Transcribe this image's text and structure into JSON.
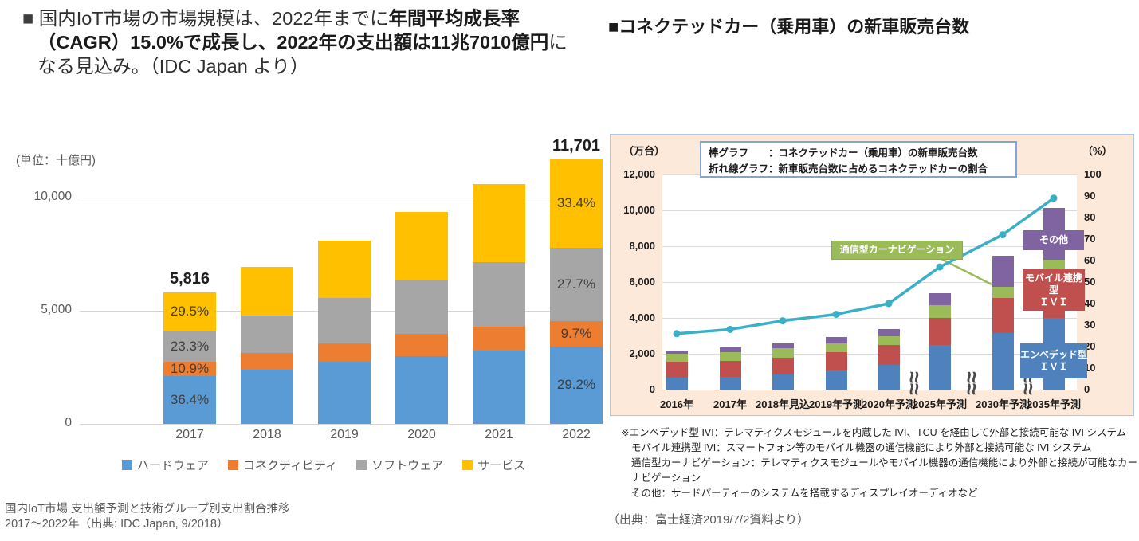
{
  "left": {
    "title": {
      "bullet": "■ ",
      "normal1": "国内IoT市場の市場規模は、2022年までに",
      "bold": "年間平均成長率（CAGR）15.0%で成長し、2022年の支出額は11兆7010億円",
      "normal2": "になる見込み。（IDC Japan より）"
    },
    "caption_line1": "国内IoT市場 支出額予測と技術グループ別支出割合推移",
    "caption_line2": "2017～2022年（出典: IDC Japan, 9/2018）"
  },
  "right": {
    "title": "■コネクテッドカー（乗用車）の新車販売台数",
    "legend_line1": "棒グラフ　　：コネクテッドカー（乗用車）の新車販売台数",
    "legend_line2": "折れ線グラフ：新車販売台数に占めるコネクテッドカーの割合",
    "notes": [
      "※エンベデッド型 IVI：テレマティクスモジュールを内蔵した IVI、TCU を経由して外部と接続可能な IVI システム",
      "モバイル連携型 IVI：スマートフォン等のモバイル機器の通信機能により外部と接続可能な IVI システム",
      "通信型カーナビゲーション：テレマティクスモジュールやモバイル機器の通信機能により外部と接続が可能なカーナビゲーション",
      "その他：サードパーティーのシステムを搭載するディスプレイオーディオなど"
    ],
    "caption": "（出典：富士経済2019/7/2資料より）"
  },
  "chart_data": [
    {
      "type": "bar",
      "stacked": true,
      "title": "国内IoT市場 支出額予測と技術グループ別支出割合推移 2017～2022年",
      "unit_label": "(単位：十億円)",
      "categories": [
        "2017",
        "2018",
        "2019",
        "2020",
        "2021",
        "2022"
      ],
      "series": [
        {
          "name": "ハードウェア",
          "color": "#5B9BD5",
          "values": [
            2117,
            2380,
            2740,
            3000,
            3230,
            3417
          ]
        },
        {
          "name": "コネクティビティ",
          "color": "#ED7D31",
          "values": [
            634,
            760,
            820,
            975,
            1080,
            1135
          ]
        },
        {
          "name": "ソフトウェア",
          "color": "#A6A6A6",
          "values": [
            1355,
            1640,
            2000,
            2370,
            2830,
            3241
          ]
        },
        {
          "name": "サービス",
          "color": "#FFC000",
          "values": [
            1710,
            2170,
            2540,
            3005,
            3460,
            3908
          ]
        }
      ],
      "totals": [
        5816,
        6950,
        8100,
        9350,
        10600,
        11701
      ],
      "total_labels": {
        "2017": "5,816",
        "2022": "11,701"
      },
      "pct_labels": {
        "2017": [
          "36.4%",
          "10.9%",
          "23.3%",
          "29.5%"
        ],
        "2022": [
          "29.2%",
          "9.7%",
          "27.7%",
          "33.4%"
        ]
      },
      "ylim": [
        0,
        12000
      ],
      "yticks": [
        {
          "value": 0,
          "label": "0"
        },
        {
          "value": 5000,
          "label": "5,000"
        },
        {
          "value": 10000,
          "label": "10,000"
        }
      ],
      "legend_position": "bottom",
      "grid": true
    },
    {
      "type": "bar+line",
      "stacked": true,
      "title": "コネクテッドカー（乗用車）の新車販売台数",
      "categories": [
        "2016年",
        "2017年",
        "2018年見込",
        "2019年予測",
        "2020年予測",
        "2025年予測",
        "2030年予測",
        "2035年予測"
      ],
      "bar_series": [
        {
          "name": "エンベデッド型ＩＶＩ",
          "color": "#4F81BD",
          "values": [
            650,
            700,
            850,
            1050,
            1400,
            2500,
            3150,
            4000
          ]
        },
        {
          "name": "モバイル連携型ＩＶＩ",
          "color": "#C0504D",
          "values": [
            900,
            900,
            950,
            1050,
            1100,
            1500,
            1950,
            2600
          ]
        },
        {
          "name": "通信型カーナビゲーション",
          "color": "#9BBB59",
          "values": [
            450,
            500,
            500,
            500,
            500,
            700,
            650,
            650
          ]
        },
        {
          "name": "その他",
          "color": "#8064A2",
          "values": [
            200,
            250,
            300,
            350,
            400,
            700,
            1700,
            2900
          ]
        }
      ],
      "line_series": {
        "name": "新車販売台数に占めるコネクテッドカーの割合",
        "color": "#3BAFC6",
        "values": [
          26,
          28,
          32,
          35,
          40,
          57,
          72,
          89
        ]
      },
      "y_left": {
        "unit": "（万台）",
        "min": 0,
        "max": 12000,
        "tick": 2000
      },
      "y_right": {
        "unit": "（%）",
        "min": 0,
        "max": 100,
        "tick": 10
      },
      "y_left_ticks": [
        {
          "value": 0,
          "label": "0"
        },
        {
          "value": 2000,
          "label": "2,000"
        },
        {
          "value": 4000,
          "label": "4,000"
        },
        {
          "value": 6000,
          "label": "6,000"
        },
        {
          "value": 8000,
          "label": "8,000"
        },
        {
          "value": 10000,
          "label": "10,000"
        },
        {
          "value": 12000,
          "label": "12,000"
        }
      ],
      "y_right_ticks": [
        {
          "value": 0,
          "label": "0"
        },
        {
          "value": 10,
          "label": "10"
        },
        {
          "value": 20,
          "label": "20"
        },
        {
          "value": 30,
          "label": "30"
        },
        {
          "value": 40,
          "label": "40"
        },
        {
          "value": 50,
          "label": "50"
        },
        {
          "value": 60,
          "label": "60"
        },
        {
          "value": 70,
          "label": "70"
        },
        {
          "value": 80,
          "label": "80"
        },
        {
          "value": 90,
          "label": "90"
        },
        {
          "value": 100,
          "label": "100"
        }
      ],
      "axis_breaks_after": [
        "2020年予測",
        "2025年予測",
        "2030年予測"
      ],
      "break_glyph": "≈",
      "callout": {
        "text": "通信型カーナビゲーション",
        "series_index": 2,
        "target_category": "2030年予測"
      },
      "bar_annotations": [
        {
          "series_index": 3,
          "lines": [
            "その他"
          ]
        },
        {
          "series_index": 1,
          "lines": [
            "モバイル連携型",
            "ＩＶＩ"
          ]
        },
        {
          "series_index": 0,
          "lines": [
            "エンベデッド型",
            "ＩＶＩ"
          ]
        }
      ],
      "background": "#FDE9D9",
      "grid": true
    }
  ]
}
